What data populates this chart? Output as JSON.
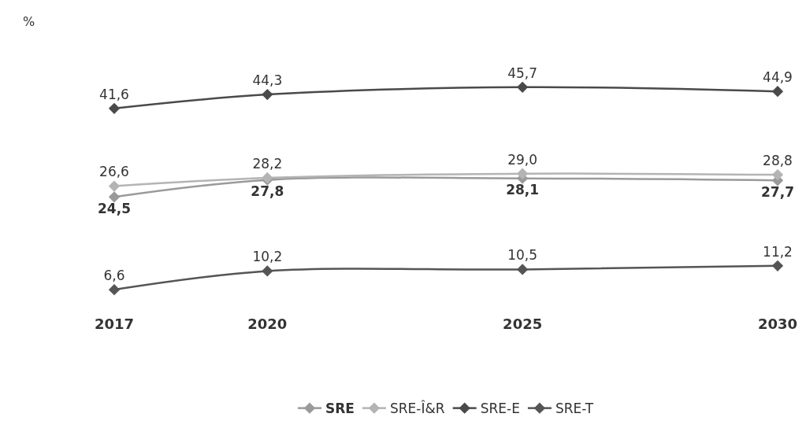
{
  "chart_data": {
    "type": "line",
    "annotations": [
      "%"
    ],
    "x": [
      2017,
      2020,
      2025,
      2030
    ],
    "xlim": [
      2017,
      2030
    ],
    "xticks": [
      2017,
      2020,
      2025,
      2030
    ],
    "tick_labels": "x",
    "legend": "bottom",
    "marker": "diamond",
    "line_style": "solid",
    "series": [
      {
        "name": "SRE",
        "color": "#9a9a9a",
        "values": [
          24.5,
          27.8,
          28.1,
          27.7
        ],
        "value_labels": [
          "24,5",
          "27,8",
          "28,1",
          "27,7"
        ]
      },
      {
        "name": "SRE-Î&R",
        "color": "#b4b4b4",
        "values": [
          26.6,
          28.2,
          29.0,
          28.8
        ],
        "value_labels": [
          "26,6",
          "28,2",
          "29,0",
          "28,8"
        ]
      },
      {
        "name": "SRE-E",
        "color": "#4a4a4a",
        "values": [
          41.6,
          44.3,
          45.7,
          44.9
        ],
        "value_labels": [
          "41,6",
          "44,3",
          "45,7",
          "44,9"
        ]
      },
      {
        "name": "SRE-T",
        "color": "#555555",
        "values": [
          6.6,
          10.2,
          10.5,
          11.2
        ],
        "value_labels": [
          "6,6",
          "10,2",
          "10,5",
          "11,2"
        ]
      }
    ]
  }
}
